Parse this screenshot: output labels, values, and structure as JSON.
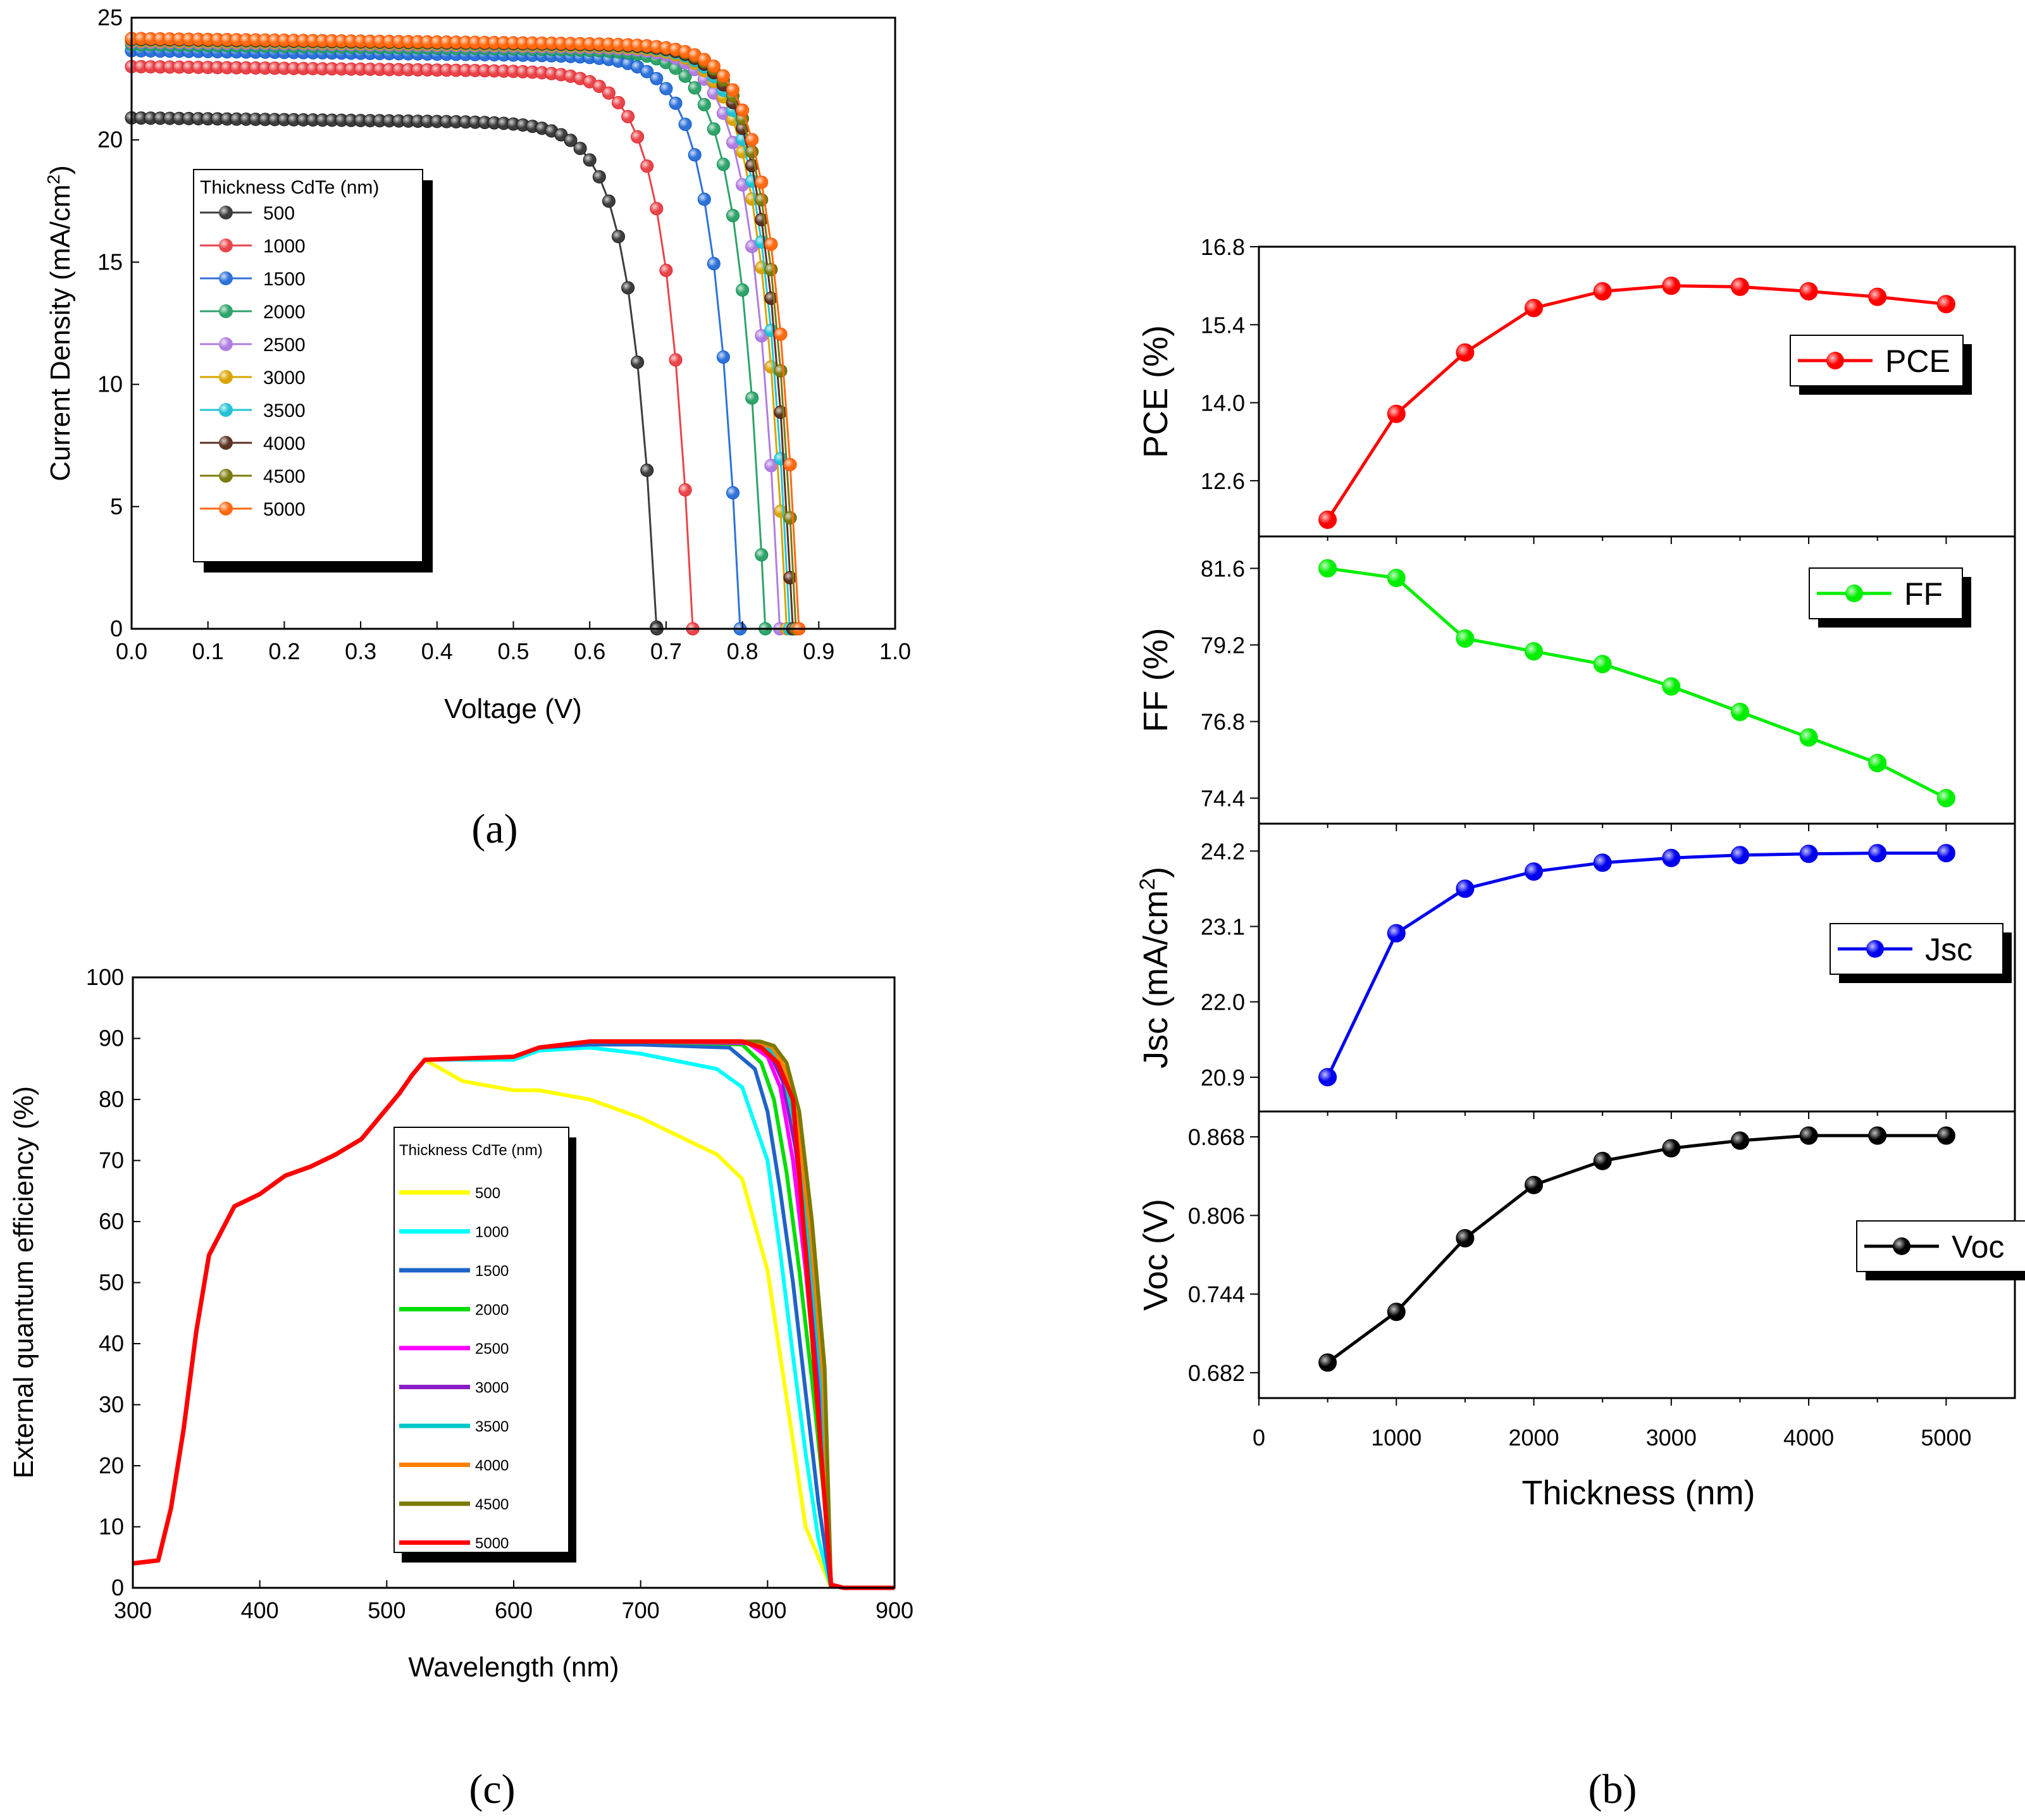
{
  "chart_data": [
    {
      "id": "a",
      "type": "line",
      "panel_label": "(a)",
      "xlabel": "Voltage (V)",
      "ylabel": "Current Density (mA/cm",
      "ylabel_sup": "2",
      "ylabel_end": ")",
      "xlim": [
        0,
        1.0
      ],
      "ylim": [
        0,
        25
      ],
      "xticks": [
        "0.0",
        "0.1",
        "0.2",
        "0.3",
        "0.4",
        "0.5",
        "0.6",
        "0.7",
        "0.8",
        "0.9",
        "1.0"
      ],
      "yticks": [
        "0",
        "5",
        "10",
        "15",
        "20",
        "25"
      ],
      "legend_title": "Thickness CdTe (nm)",
      "series": [
        {
          "name": "500",
          "color": "#3d3d3d",
          "jsc": 20.9,
          "voc": 0.688
        },
        {
          "name": "1000",
          "color": "#e8454a",
          "jsc": 23.0,
          "voc": 0.735
        },
        {
          "name": "1500",
          "color": "#2f72d8",
          "jsc": 23.65,
          "voc": 0.797
        },
        {
          "name": "2000",
          "color": "#2fa36a",
          "jsc": 23.9,
          "voc": 0.83
        },
        {
          "name": "2500",
          "color": "#b07ee0",
          "jsc": 24.0,
          "voc": 0.849
        },
        {
          "name": "3000",
          "color": "#d9a400",
          "jsc": 24.05,
          "voc": 0.858
        },
        {
          "name": "3500",
          "color": "#22c3d4",
          "jsc": 24.1,
          "voc": 0.862
        },
        {
          "name": "4000",
          "color": "#5c3224",
          "jsc": 24.12,
          "voc": 0.866
        },
        {
          "name": "4500",
          "color": "#7b7b10",
          "jsc": 24.14,
          "voc": 0.87
        },
        {
          "name": "5000",
          "color": "#ff6a10",
          "jsc": 24.15,
          "voc": 0.874
        }
      ]
    },
    {
      "id": "c",
      "type": "line",
      "panel_label": "(c)",
      "xlabel": "Wavelength (nm)",
      "ylabel": "External quantum efficiency (%)",
      "xlim": [
        300,
        900
      ],
      "ylim": [
        0,
        100
      ],
      "xticks": [
        "300",
        "400",
        "500",
        "600",
        "700",
        "800",
        "900"
      ],
      "yticks": [
        "0",
        "10",
        "20",
        "30",
        "40",
        "50",
        "60",
        "70",
        "80",
        "90",
        "100"
      ],
      "legend_title": "Thickness CdTe (nm)",
      "common_x": [
        300,
        320,
        330,
        340,
        350,
        360,
        380,
        400,
        420,
        440,
        460,
        480,
        490,
        500,
        510,
        520,
        530
      ],
      "common_y": [
        4,
        4.5,
        13,
        26,
        42,
        54.5,
        62.5,
        64.5,
        67.5,
        69,
        71,
        73.5,
        76,
        78.5,
        81,
        84,
        86.5
      ],
      "series": [
        {
          "name": "500",
          "color": "#ffff00",
          "x": [
            530,
            560,
            600,
            620,
            660,
            700,
            740,
            760,
            780,
            800,
            810,
            820,
            830,
            850
          ],
          "y": [
            84.5,
            83,
            81.5,
            81.5,
            80,
            77,
            73,
            71,
            67,
            52,
            38,
            24,
            10,
            0
          ]
        },
        {
          "name": "1000",
          "color": "#00ffff",
          "x": [
            530,
            600,
            620,
            660,
            700,
            760,
            780,
            800,
            810,
            820,
            830,
            840,
            850
          ],
          "y": [
            86.5,
            86.5,
            88,
            88.5,
            87.5,
            85,
            82,
            70,
            55,
            38,
            22,
            8,
            0
          ]
        },
        {
          "name": "1500",
          "color": "#1e64c8",
          "x": [
            530,
            600,
            620,
            660,
            700,
            770,
            790,
            800,
            810,
            820,
            830,
            840,
            850
          ],
          "y": [
            86.5,
            87,
            88.5,
            89,
            89,
            88.5,
            85,
            78,
            65,
            50,
            32,
            14,
            0
          ]
        },
        {
          "name": "2000",
          "color": "#00dd00",
          "x": [
            530,
            600,
            620,
            660,
            700,
            780,
            795,
            805,
            815,
            825,
            835,
            845,
            850
          ],
          "y": [
            86.5,
            87,
            88.5,
            89.5,
            89.5,
            89,
            86,
            80,
            68,
            52,
            34,
            14,
            0
          ]
        },
        {
          "name": "2500",
          "color": "#ff00ff",
          "x": [
            530,
            600,
            620,
            660,
            700,
            785,
            800,
            810,
            820,
            830,
            840,
            845,
            850
          ],
          "y": [
            86.5,
            87,
            88.5,
            89.5,
            89.5,
            89.2,
            87,
            82,
            70,
            52,
            30,
            14,
            0
          ]
        },
        {
          "name": "3000",
          "color": "#8a1cc8",
          "x": [
            530,
            600,
            620,
            660,
            700,
            788,
            802,
            812,
            822,
            832,
            842,
            850
          ],
          "y": [
            86.5,
            87,
            88.5,
            89.5,
            89.5,
            89.3,
            87.5,
            83,
            72,
            54,
            30,
            0
          ]
        },
        {
          "name": "3500",
          "color": "#00c8c8",
          "x": [
            530,
            600,
            620,
            660,
            700,
            790,
            803,
            813,
            823,
            833,
            843,
            850
          ],
          "y": [
            86.5,
            87,
            88.5,
            89.5,
            89.5,
            89.4,
            88,
            84,
            74,
            56,
            32,
            0
          ]
        },
        {
          "name": "4000",
          "color": "#ff8000",
          "x": [
            530,
            600,
            620,
            660,
            700,
            792,
            804,
            814,
            824,
            834,
            844,
            850
          ],
          "y": [
            86.5,
            87,
            88.5,
            89.5,
            89.5,
            89.4,
            88.5,
            85,
            76,
            58,
            34,
            0
          ]
        },
        {
          "name": "4500",
          "color": "#7a7a00",
          "x": [
            530,
            600,
            620,
            660,
            700,
            794,
            805,
            815,
            825,
            835,
            845,
            850
          ],
          "y": [
            86.5,
            87,
            88.5,
            89.5,
            89.5,
            89.5,
            88.8,
            86,
            78,
            60,
            36,
            0
          ]
        },
        {
          "name": "5000",
          "color": "#ff0000",
          "x": [
            530,
            600,
            620,
            660,
            700,
            760,
            780,
            795,
            808,
            820,
            830,
            840,
            850,
            860,
            900
          ],
          "y": [
            86.5,
            87,
            88.5,
            89.5,
            89.5,
            89.5,
            89.5,
            88.5,
            86,
            80,
            55,
            28,
            0.5,
            0,
            0
          ]
        }
      ]
    },
    {
      "id": "b",
      "type": "line",
      "panel_label": "(b)",
      "xlabel": "Thickness (nm)",
      "xlim": [
        0,
        5500
      ],
      "xticks": [
        "0",
        "1000",
        "2000",
        "3000",
        "4000",
        "5000"
      ],
      "x": [
        500,
        1000,
        1500,
        2000,
        2500,
        3000,
        3500,
        4000,
        4500,
        5000
      ],
      "subplots": [
        {
          "name": "PCE",
          "ylabel": "PCE (%)",
          "color": "#ff0000",
          "ylim": [
            11.6,
            16.8
          ],
          "yticks": [
            "12.6",
            "14.0",
            "15.4",
            "16.8"
          ],
          "ytick_values": [
            12.6,
            14.0,
            15.4,
            16.8
          ],
          "values": [
            11.9,
            13.8,
            14.9,
            15.7,
            16.0,
            16.1,
            16.08,
            16.0,
            15.9,
            15.77
          ]
        },
        {
          "name": "FF",
          "ylabel": "FF (%)",
          "color": "#00ee00",
          "ylim": [
            73.6,
            82.6
          ],
          "yticks": [
            "74.4",
            "76.8",
            "79.2",
            "81.6"
          ],
          "ytick_values": [
            74.4,
            76.8,
            79.2,
            81.6
          ],
          "values": [
            81.6,
            81.3,
            79.4,
            79.0,
            78.6,
            77.9,
            77.1,
            76.3,
            75.5,
            74.4
          ]
        },
        {
          "name": "Jsc",
          "ylabel": "Jsc (mA/cm",
          "ylabel_sup": "2",
          "ylabel_end": ")",
          "color": "#0000ee",
          "ylim": [
            20.4,
            24.6
          ],
          "yticks": [
            "20.9",
            "22.0",
            "23.1",
            "24.2"
          ],
          "ytick_values": [
            20.9,
            22.0,
            23.1,
            24.2
          ],
          "values": [
            20.9,
            23.0,
            23.65,
            23.9,
            24.03,
            24.1,
            24.14,
            24.16,
            24.17,
            24.17
          ]
        },
        {
          "name": "Voc",
          "ylabel": "Voc (V)",
          "color": "#000000",
          "ylim": [
            0.662,
            0.888
          ],
          "yticks": [
            "0.682",
            "0.744",
            "0.806",
            "0.868"
          ],
          "ytick_values": [
            0.682,
            0.744,
            0.806,
            0.868
          ],
          "values": [
            0.69,
            0.73,
            0.788,
            0.83,
            0.849,
            0.859,
            0.865,
            0.869,
            0.869,
            0.869
          ]
        }
      ]
    }
  ]
}
